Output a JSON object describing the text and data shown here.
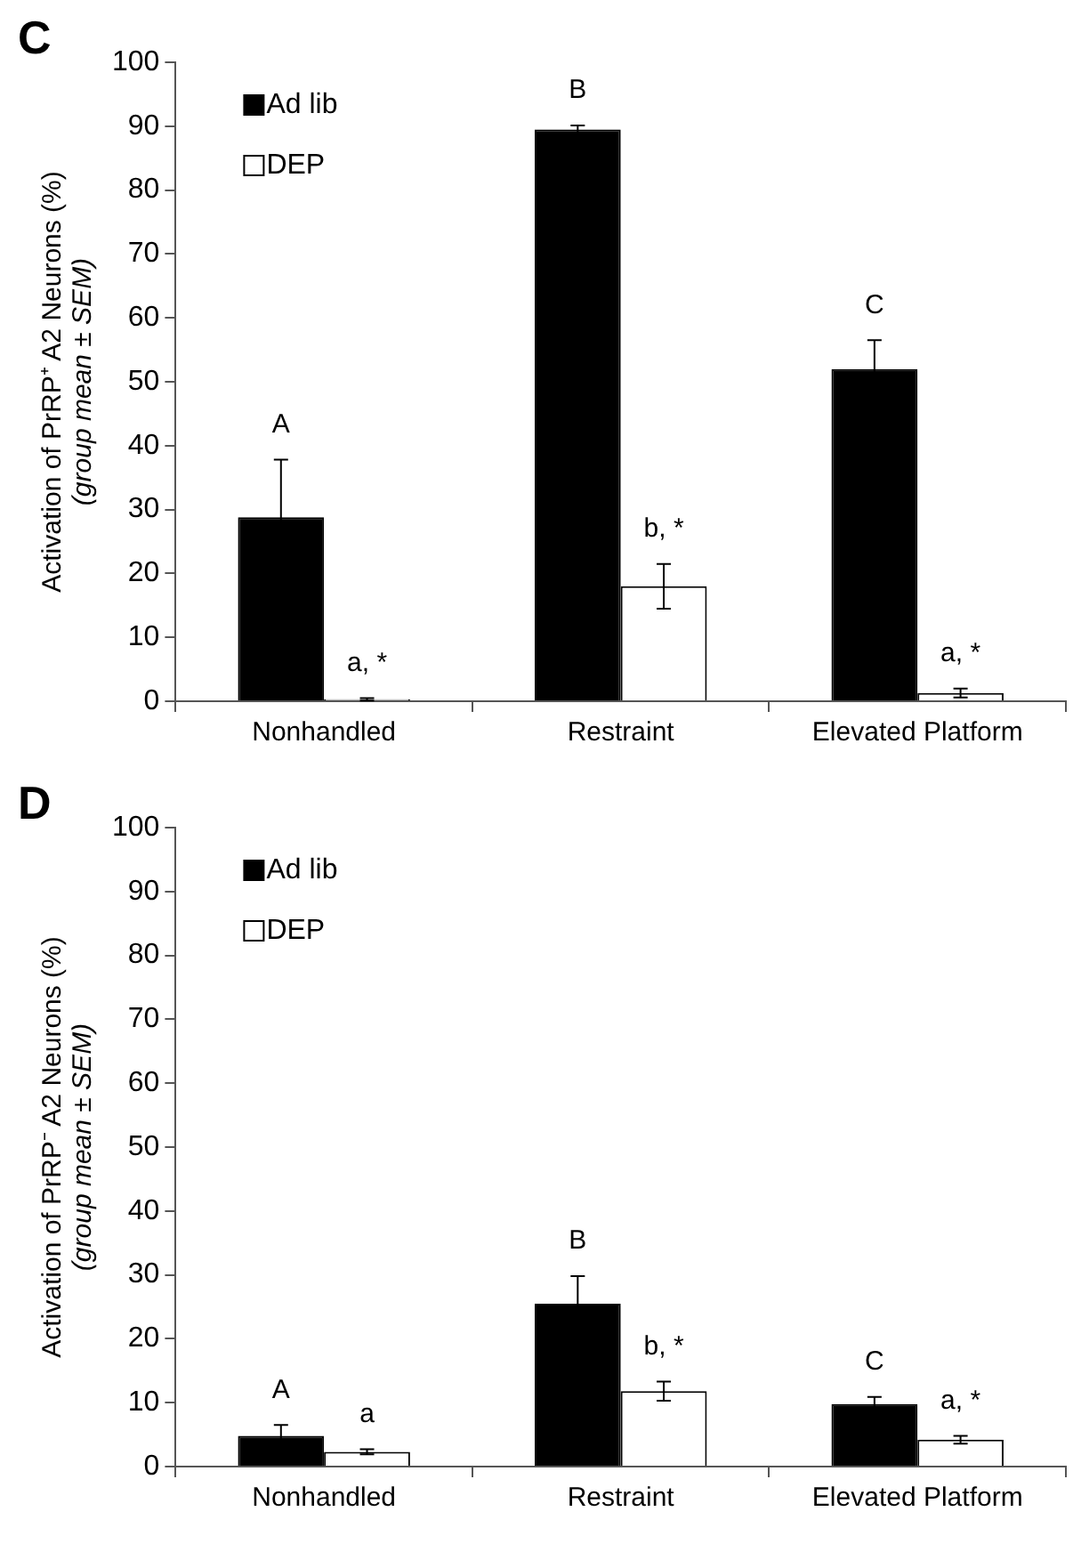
{
  "chart_data": [
    {
      "type": "bar",
      "title": "C",
      "ylabel": "Activation of PrRP⁺ A2 Neurons (%)\n(group mean ± SEM)",
      "categories": [
        "Nonhandled",
        "Restraint",
        "Elevated Platform"
      ],
      "series": [
        {
          "name": "Ad lib",
          "color": "#000000",
          "values": [
            28.8,
            89.5,
            52
          ],
          "errors": [
            9,
            0.6,
            4.5
          ],
          "value_labels": [
            "A",
            "B",
            "C"
          ]
        },
        {
          "name": "DEP",
          "color": "#ffffff",
          "values": [
            0.3,
            18,
            1.3
          ],
          "errors": [
            0.2,
            3.5,
            0.7
          ],
          "value_labels": [
            "a, *",
            "b, *",
            "a, *"
          ]
        }
      ],
      "ylim": [
        0,
        100
      ],
      "yticks": [
        0,
        10,
        20,
        30,
        40,
        50,
        60,
        70,
        80,
        90,
        100
      ],
      "grid": false,
      "legend": "top left"
    },
    {
      "type": "bar",
      "title": "D",
      "ylabel": "Activation of PrRP⁻ A2 Neurons (%)\n(group mean ± SEM)",
      "categories": [
        "Nonhandled",
        "Restraint",
        "Elevated Platform"
      ],
      "series": [
        {
          "name": "Ad lib",
          "color": "#000000",
          "values": [
            4.8,
            25.5,
            9.8
          ],
          "errors": [
            1.7,
            4.3,
            1.1
          ],
          "value_labels": [
            "A",
            "B",
            "C"
          ]
        },
        {
          "name": "DEP",
          "color": "#ffffff",
          "values": [
            2.3,
            11.8,
            4.2
          ],
          "errors": [
            0.4,
            1.5,
            0.6
          ],
          "value_labels": [
            "a",
            "b, *",
            "a, *"
          ]
        }
      ],
      "ylim": [
        0,
        100
      ],
      "yticks": [
        0,
        10,
        20,
        30,
        40,
        50,
        60,
        70,
        80,
        90,
        100
      ],
      "grid": false,
      "legend": "top left"
    }
  ]
}
